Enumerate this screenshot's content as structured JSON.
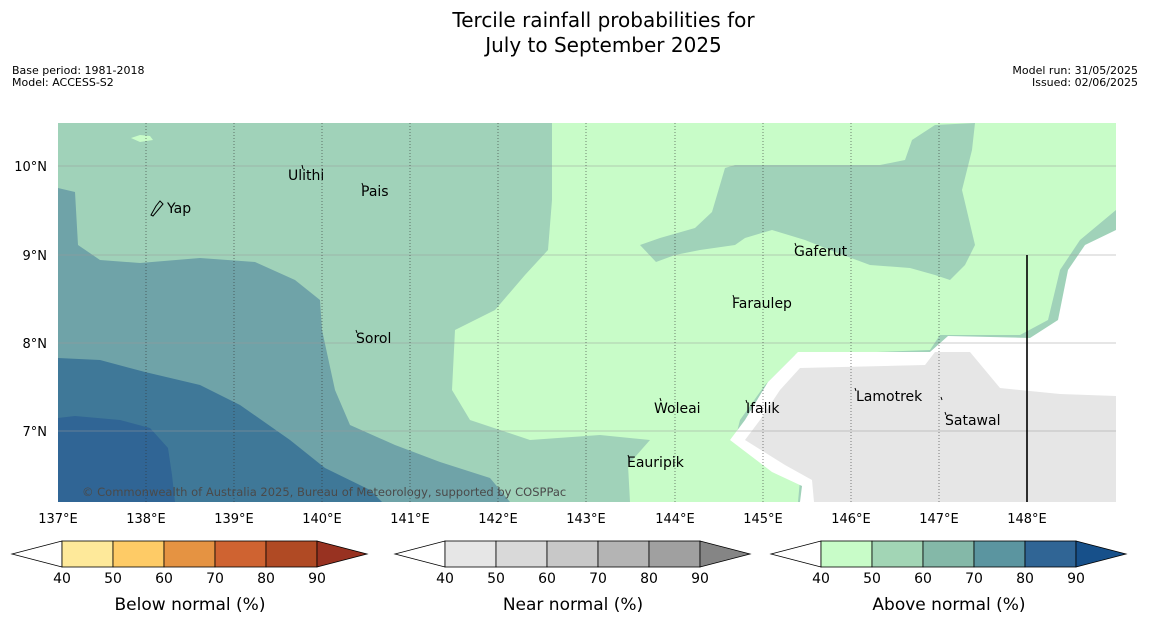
{
  "title": {
    "line1": "Tercile rainfall probabilities for",
    "line2": "July to September 2025"
  },
  "meta_left": {
    "base_period": "Base period: 1981-2018",
    "model": "Model: ACCESS-S2"
  },
  "meta_right": {
    "model_run": "Model run: 31/05/2025",
    "issued": "Issued: 02/06/2025"
  },
  "lon_ticks": [
    "137°E",
    "138°E",
    "139°E",
    "140°E",
    "141°E",
    "142°E",
    "143°E",
    "144°E",
    "145°E",
    "146°E",
    "147°E",
    "148°E"
  ],
  "lat_ticks": [
    "10°N",
    "9°N",
    "8°N",
    "7°N"
  ],
  "places": [
    {
      "name": "Yap"
    },
    {
      "name": "Ulithi"
    },
    {
      "name": "Pais"
    },
    {
      "name": "Gaferut"
    },
    {
      "name": "Faraulep"
    },
    {
      "name": "Sorol"
    },
    {
      "name": "Woleai"
    },
    {
      "name": "Ifalik"
    },
    {
      "name": "Lamotrek"
    },
    {
      "name": "Satawal"
    },
    {
      "name": "Eauripik"
    }
  ],
  "copyright": "© Commonwealth of Australia 2025, Bureau of Meteorology, supported by COSPPac",
  "colorbars": [
    {
      "label": "Below normal (%)",
      "ticks": [
        "40",
        "50",
        "60",
        "70",
        "80",
        "90"
      ],
      "colors": [
        "#ffffff",
        "#fee99a",
        "#fecb66",
        "#e59342",
        "#cf6331",
        "#b04a24",
        "#983221"
      ]
    },
    {
      "label": "Near normal (%)",
      "ticks": [
        "40",
        "50",
        "60",
        "70",
        "80",
        "90"
      ],
      "colors": [
        "#ffffff",
        "#e6e6e6",
        "#d9d9d9",
        "#c8c8c8",
        "#b4b4b4",
        "#a0a0a0",
        "#858585"
      ]
    },
    {
      "label": "Above normal (%)",
      "ticks": [
        "40",
        "50",
        "60",
        "70",
        "80",
        "90"
      ],
      "colors": [
        "#ffffff",
        "#c8fcc8",
        "#a2d5b5",
        "#84b8a8",
        "#5b95a0",
        "#306595",
        "#17508a"
      ]
    }
  ]
}
